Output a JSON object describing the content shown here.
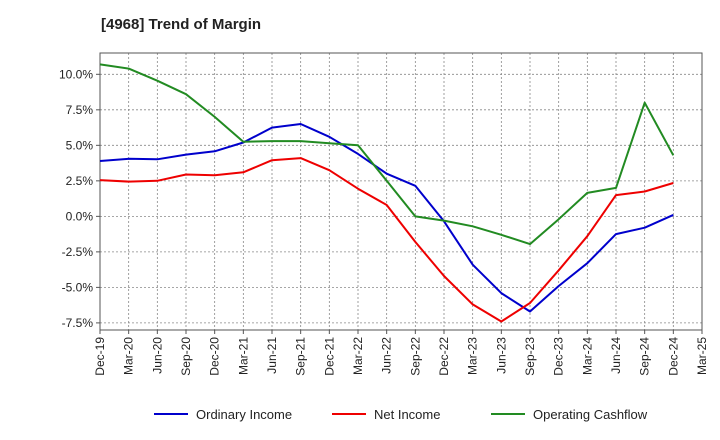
{
  "chart_data": {
    "type": "line",
    "title": "[4968]  Trend of Margin",
    "x_tick_labels": [
      "Dec-19",
      "Mar-20",
      "Jun-20",
      "Sep-20",
      "Dec-20",
      "Mar-21",
      "Jun-21",
      "Sep-21",
      "Dec-21",
      "Mar-22",
      "Jun-22",
      "Sep-22",
      "Dec-22",
      "Mar-23",
      "Jun-23",
      "Sep-23",
      "Dec-23",
      "Mar-24",
      "Jun-24",
      "Sep-24",
      "Dec-24",
      "Mar-25"
    ],
    "y_ticks": [
      10.0,
      7.5,
      5.0,
      2.5,
      0.0,
      -2.5,
      -5.0,
      -7.5
    ],
    "y_tick_labels": [
      "10.0%",
      "7.5%",
      "5.0%",
      "2.5%",
      "0.0%",
      "-2.5%",
      "-5.0%",
      "-7.5%"
    ],
    "ylim": [
      -8.0,
      11.5
    ],
    "grid": true,
    "legend_position": "bottom",
    "series": [
      {
        "name": "Ordinary Income",
        "color": "#0000cc",
        "values": [
          3.9,
          4.05,
          4.02,
          4.35,
          4.58,
          5.2,
          6.25,
          6.5,
          5.6,
          4.4,
          3.0,
          2.15,
          -0.35,
          -3.4,
          -5.4,
          -6.7,
          -4.9,
          -3.3,
          -1.25,
          -0.8,
          0.1
        ]
      },
      {
        "name": "Net Income",
        "color": "#ee0000",
        "values": [
          2.55,
          2.45,
          2.5,
          2.95,
          2.9,
          3.1,
          3.95,
          4.1,
          3.25,
          1.95,
          0.8,
          -1.8,
          -4.2,
          -6.2,
          -7.4,
          -6.1,
          -3.8,
          -1.4,
          1.5,
          1.75,
          2.35
        ]
      },
      {
        "name": "Operating Cashflow",
        "color": "#228b22",
        "values": [
          10.7,
          10.4,
          9.55,
          8.6,
          7.0,
          5.25,
          5.3,
          5.3,
          5.15,
          5.0,
          2.5,
          0.0,
          -0.3,
          -0.7,
          -1.3,
          -1.95,
          -0.2,
          1.65,
          2.0,
          8.0,
          4.3
        ]
      }
    ]
  }
}
